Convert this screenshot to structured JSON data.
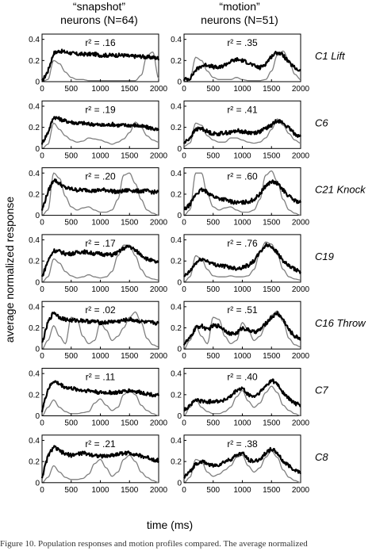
{
  "column_headers": [
    {
      "line1": "“snapshot”",
      "line2": "neurons (N=64)"
    },
    {
      "line1": "“motion”",
      "line2": "neurons (N=51)"
    }
  ],
  "ylabel": "average normalized response",
  "xlabel": "time (ms)",
  "caption_fragment": "Figure 10.  Population responses and motion profiles compared. The average normalized",
  "colors": {
    "response": "#000000",
    "motion_profile": "#7f7f7f",
    "axes": "#000000"
  },
  "chart_data": {
    "type": "line",
    "xlim": [
      0,
      2000
    ],
    "ylim": [
      0,
      0.45
    ],
    "xticks": [
      "0",
      "500",
      "1000",
      "1500",
      "2000"
    ],
    "yticks": [
      "0",
      "0.2",
      "0.4"
    ],
    "series_legend": {
      "thick_black": "average normalized response",
      "thin_gray": "motion profile"
    },
    "rows": [
      {
        "label": "C1 Lift",
        "snapshot": {
          "r2": "r² = .16",
          "response": [
            0.0,
            0.1,
            0.27,
            0.29,
            0.28,
            0.27,
            0.26,
            0.26,
            0.26,
            0.26,
            0.25,
            0.25,
            0.25,
            0.25,
            0.25,
            0.24,
            0.24,
            0.24,
            0.23,
            0.23,
            0.22
          ],
          "motion": [
            0.0,
            0.02,
            0.2,
            0.17,
            0.09,
            0.04,
            0.02,
            0.02,
            0.01,
            0.01,
            0.01,
            0.01,
            0.01,
            0.01,
            0.01,
            0.01,
            0.01,
            0.06,
            0.25,
            0.28,
            0.03
          ]
        },
        "motion": {
          "r2": "r² = .35",
          "response": [
            0.02,
            0.03,
            0.11,
            0.15,
            0.16,
            0.14,
            0.13,
            0.16,
            0.19,
            0.21,
            0.2,
            0.18,
            0.15,
            0.13,
            0.17,
            0.24,
            0.28,
            0.25,
            0.18,
            0.13,
            0.1
          ],
          "motion": [
            0.0,
            0.02,
            0.23,
            0.2,
            0.1,
            0.04,
            0.02,
            0.02,
            0.02,
            0.04,
            0.02,
            0.01,
            0.01,
            0.01,
            0.02,
            0.1,
            0.25,
            0.29,
            0.2,
            0.07,
            0.02
          ]
        }
      },
      {
        "label": "C6",
        "snapshot": {
          "r2": "r² = .19",
          "response": [
            0.05,
            0.15,
            0.3,
            0.28,
            0.26,
            0.25,
            0.24,
            0.24,
            0.23,
            0.23,
            0.22,
            0.22,
            0.23,
            0.22,
            0.22,
            0.22,
            0.22,
            0.21,
            0.2,
            0.19,
            0.17
          ],
          "motion": [
            0.0,
            0.04,
            0.24,
            0.18,
            0.12,
            0.08,
            0.06,
            0.07,
            0.1,
            0.09,
            0.08,
            0.06,
            0.04,
            0.06,
            0.09,
            0.15,
            0.25,
            0.2,
            0.12,
            0.08,
            0.06
          ]
        },
        "motion": {
          "r2": "r² = .41",
          "response": [
            0.05,
            0.1,
            0.18,
            0.19,
            0.16,
            0.14,
            0.14,
            0.15,
            0.15,
            0.17,
            0.16,
            0.15,
            0.15,
            0.16,
            0.19,
            0.22,
            0.27,
            0.24,
            0.19,
            0.14,
            0.11
          ],
          "motion": [
            0.02,
            0.05,
            0.24,
            0.22,
            0.12,
            0.08,
            0.06,
            0.06,
            0.1,
            0.1,
            0.08,
            0.06,
            0.05,
            0.06,
            0.1,
            0.18,
            0.28,
            0.22,
            0.14,
            0.08,
            0.05
          ]
        }
      },
      {
        "label": "C21 Knock",
        "snapshot": {
          "r2": "r² = .20",
          "response": [
            0.05,
            0.22,
            0.34,
            0.3,
            0.26,
            0.25,
            0.24,
            0.24,
            0.24,
            0.23,
            0.24,
            0.24,
            0.23,
            0.22,
            0.23,
            0.24,
            0.23,
            0.23,
            0.23,
            0.22,
            0.22
          ],
          "motion": [
            0.0,
            0.05,
            0.4,
            0.35,
            0.18,
            0.08,
            0.05,
            0.07,
            0.08,
            0.05,
            0.03,
            0.03,
            0.05,
            0.15,
            0.38,
            0.4,
            0.3,
            0.15,
            0.05,
            0.02,
            0.0
          ]
        },
        "motion": {
          "r2": "r² = .60",
          "response": [
            0.05,
            0.1,
            0.2,
            0.24,
            0.22,
            0.18,
            0.16,
            0.15,
            0.13,
            0.12,
            0.12,
            0.13,
            0.15,
            0.2,
            0.28,
            0.32,
            0.3,
            0.24,
            0.18,
            0.14,
            0.12
          ],
          "motion": [
            0.0,
            0.05,
            0.4,
            0.4,
            0.2,
            0.08,
            0.05,
            0.07,
            0.08,
            0.05,
            0.03,
            0.03,
            0.05,
            0.15,
            0.38,
            0.42,
            0.32,
            0.15,
            0.05,
            0.02,
            0.0
          ]
        }
      },
      {
        "label": "C19",
        "snapshot": {
          "r2": "r² = .17",
          "response": [
            0.05,
            0.2,
            0.3,
            0.29,
            0.27,
            0.27,
            0.28,
            0.29,
            0.28,
            0.27,
            0.27,
            0.26,
            0.26,
            0.28,
            0.32,
            0.34,
            0.3,
            0.26,
            0.22,
            0.2,
            0.18
          ],
          "motion": [
            0.0,
            0.05,
            0.22,
            0.18,
            0.1,
            0.06,
            0.04,
            0.05,
            0.07,
            0.05,
            0.04,
            0.05,
            0.1,
            0.25,
            0.35,
            0.35,
            0.25,
            0.12,
            0.05,
            0.03,
            0.02
          ]
        },
        "motion": {
          "r2": "r² = .76",
          "response": [
            0.05,
            0.1,
            0.18,
            0.22,
            0.2,
            0.17,
            0.16,
            0.15,
            0.14,
            0.13,
            0.14,
            0.16,
            0.2,
            0.28,
            0.35,
            0.34,
            0.28,
            0.2,
            0.15,
            0.12,
            0.1
          ],
          "motion": [
            0.0,
            0.05,
            0.25,
            0.22,
            0.12,
            0.06,
            0.05,
            0.05,
            0.06,
            0.05,
            0.05,
            0.06,
            0.12,
            0.28,
            0.38,
            0.36,
            0.26,
            0.12,
            0.05,
            0.03,
            0.02
          ]
        }
      },
      {
        "label": "C16 Throw",
        "snapshot": {
          "r2": "r² = .02",
          "response": [
            0.05,
            0.25,
            0.35,
            0.3,
            0.28,
            0.27,
            0.27,
            0.27,
            0.26,
            0.26,
            0.25,
            0.25,
            0.26,
            0.26,
            0.27,
            0.28,
            0.27,
            0.26,
            0.25,
            0.25,
            0.24
          ],
          "motion": [
            0.0,
            0.08,
            0.22,
            0.12,
            0.05,
            0.3,
            0.28,
            0.12,
            0.05,
            0.08,
            0.25,
            0.18,
            0.08,
            0.12,
            0.2,
            0.3,
            0.35,
            0.25,
            0.1,
            0.04,
            0.02
          ]
        },
        "motion": {
          "r2": "r² = .51",
          "response": [
            0.05,
            0.1,
            0.2,
            0.22,
            0.18,
            0.22,
            0.22,
            0.18,
            0.14,
            0.15,
            0.2,
            0.18,
            0.16,
            0.18,
            0.24,
            0.3,
            0.34,
            0.28,
            0.18,
            0.12,
            0.1
          ],
          "motion": [
            0.0,
            0.08,
            0.22,
            0.12,
            0.05,
            0.3,
            0.28,
            0.12,
            0.05,
            0.08,
            0.25,
            0.18,
            0.08,
            0.12,
            0.22,
            0.32,
            0.36,
            0.26,
            0.1,
            0.04,
            0.02
          ]
        }
      },
      {
        "label": "C7",
        "snapshot": {
          "r2": "r² = .11",
          "response": [
            0.05,
            0.25,
            0.33,
            0.3,
            0.27,
            0.26,
            0.25,
            0.24,
            0.24,
            0.23,
            0.22,
            0.22,
            0.22,
            0.22,
            0.23,
            0.24,
            0.23,
            0.22,
            0.21,
            0.2,
            0.19
          ],
          "motion": [
            0.0,
            0.08,
            0.15,
            0.08,
            0.04,
            0.02,
            0.02,
            0.03,
            0.04,
            0.12,
            0.16,
            0.1,
            0.05,
            0.08,
            0.2,
            0.25,
            0.2,
            0.1,
            0.05,
            0.02,
            0.0
          ]
        },
        "motion": {
          "r2": "r² = .40",
          "response": [
            0.05,
            0.1,
            0.15,
            0.14,
            0.13,
            0.14,
            0.14,
            0.15,
            0.18,
            0.24,
            0.26,
            0.2,
            0.18,
            0.22,
            0.28,
            0.34,
            0.3,
            0.22,
            0.16,
            0.12,
            0.1
          ],
          "motion": [
            0.0,
            0.08,
            0.16,
            0.08,
            0.04,
            0.02,
            0.02,
            0.04,
            0.08,
            0.18,
            0.24,
            0.14,
            0.08,
            0.12,
            0.22,
            0.28,
            0.22,
            0.1,
            0.05,
            0.02,
            0.0
          ]
        }
      },
      {
        "label": "C8",
        "snapshot": {
          "r2": "r² = .21",
          "response": [
            0.05,
            0.25,
            0.34,
            0.3,
            0.27,
            0.26,
            0.27,
            0.28,
            0.27,
            0.26,
            0.25,
            0.25,
            0.26,
            0.27,
            0.28,
            0.28,
            0.27,
            0.25,
            0.24,
            0.22,
            0.21
          ],
          "motion": [
            0.0,
            0.05,
            0.16,
            0.1,
            0.05,
            0.03,
            0.03,
            0.04,
            0.08,
            0.18,
            0.22,
            0.14,
            0.06,
            0.1,
            0.22,
            0.26,
            0.2,
            0.1,
            0.05,
            0.02,
            0.0
          ]
        },
        "motion": {
          "r2": "r² = .38",
          "response": [
            0.05,
            0.1,
            0.18,
            0.2,
            0.18,
            0.16,
            0.17,
            0.2,
            0.22,
            0.26,
            0.28,
            0.22,
            0.2,
            0.22,
            0.28,
            0.32,
            0.28,
            0.2,
            0.16,
            0.12,
            0.1
          ],
          "motion": [
            0.0,
            0.05,
            0.22,
            0.2,
            0.1,
            0.06,
            0.08,
            0.12,
            0.16,
            0.24,
            0.26,
            0.16,
            0.1,
            0.14,
            0.24,
            0.3,
            0.24,
            0.12,
            0.05,
            0.02,
            0.0
          ]
        }
      }
    ]
  }
}
